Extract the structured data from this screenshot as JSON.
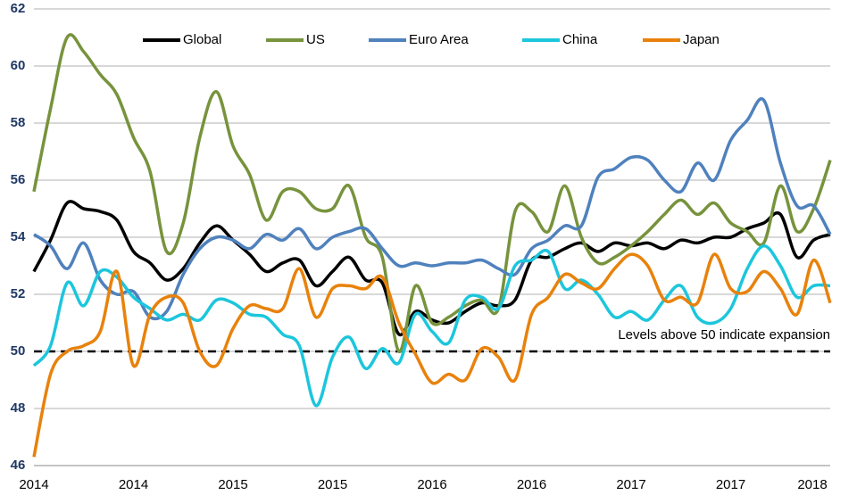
{
  "chart_data": {
    "type": "line",
    "categories": [
      "2014",
      null,
      null,
      null,
      null,
      null,
      "2014",
      null,
      null,
      null,
      null,
      null,
      "2015",
      null,
      null,
      null,
      null,
      null,
      "2015",
      null,
      null,
      null,
      null,
      null,
      "2016",
      null,
      null,
      null,
      null,
      null,
      "2016",
      null,
      null,
      null,
      null,
      null,
      "2017",
      null,
      null,
      null,
      null,
      null,
      "2017",
      null,
      null,
      null,
      null,
      null,
      "2018"
    ],
    "series": [
      {
        "name": "Global",
        "color": "#000000",
        "values": [
          52.8,
          53.9,
          55.2,
          55.0,
          54.9,
          54.6,
          53.5,
          53.1,
          52.5,
          52.9,
          53.8,
          54.4,
          53.9,
          53.4,
          52.8,
          53.1,
          53.2,
          52.3,
          52.8,
          53.3,
          52.5,
          52.4,
          50.6,
          51.4,
          51.1,
          51.0,
          51.4,
          51.7,
          51.6,
          51.8,
          53.2,
          53.3,
          53.6,
          53.8,
          53.5,
          53.8,
          53.7,
          53.8,
          53.6,
          53.9,
          53.8,
          54.0,
          54.0,
          54.3,
          54.5,
          54.8,
          53.3,
          53.9,
          54.1
        ]
      },
      {
        "name": "US",
        "color": "#77933c",
        "values": [
          55.6,
          58.5,
          61.0,
          60.5,
          59.7,
          59.0,
          57.5,
          56.3,
          53.5,
          54.5,
          57.5,
          59.1,
          57.2,
          56.2,
          54.6,
          55.6,
          55.6,
          55.0,
          55.0,
          55.8,
          54.0,
          53.3,
          50.0,
          52.3,
          51.0,
          51.2,
          51.6,
          51.8,
          51.5,
          54.9,
          54.9,
          54.2,
          55.8,
          54.0,
          53.1,
          53.3,
          53.7,
          54.2,
          54.8,
          55.3,
          54.8,
          55.2,
          54.5,
          54.2,
          53.8,
          55.8,
          54.2,
          55.0,
          56.7
        ]
      },
      {
        "name": "Euro Area",
        "color": "#4f81bd",
        "values": [
          54.1,
          53.7,
          52.9,
          53.8,
          52.5,
          52.0,
          52.1,
          51.2,
          51.4,
          52.7,
          53.6,
          54.0,
          53.9,
          53.6,
          54.1,
          53.9,
          54.3,
          53.6,
          54.0,
          54.2,
          54.3,
          53.6,
          53.0,
          53.1,
          53.0,
          53.1,
          53.1,
          53.2,
          52.9,
          52.7,
          53.6,
          53.9,
          54.4,
          54.4,
          56.1,
          56.4,
          56.8,
          56.7,
          56.0,
          55.6,
          56.6,
          56.0,
          57.4,
          58.1,
          58.8,
          56.6,
          55.1,
          55.1,
          54.1
        ]
      },
      {
        "name": "China",
        "color": "#1cc6dc",
        "values": [
          49.5,
          50.2,
          52.4,
          51.6,
          52.8,
          52.6,
          51.9,
          51.5,
          51.1,
          51.3,
          51.1,
          51.8,
          51.7,
          51.3,
          51.2,
          50.6,
          50.2,
          48.1,
          49.8,
          50.5,
          49.4,
          50.1,
          49.6,
          51.3,
          50.7,
          50.3,
          51.8,
          51.9,
          51.5,
          53.0,
          53.2,
          53.5,
          52.2,
          52.5,
          52.0,
          51.2,
          51.4,
          51.1,
          51.8,
          52.3,
          51.2,
          51.0,
          51.5,
          52.9,
          53.7,
          53.0,
          51.9,
          52.3,
          52.3
        ]
      },
      {
        "name": "Japan",
        "color": "#e8820c",
        "values": [
          46.3,
          49.2,
          50.0,
          50.2,
          50.7,
          52.8,
          49.5,
          51.3,
          51.9,
          51.7,
          50.0,
          49.5,
          50.8,
          51.6,
          51.5,
          51.5,
          52.9,
          51.2,
          52.2,
          52.3,
          52.2,
          52.6,
          51.0,
          49.9,
          48.9,
          49.2,
          49.0,
          50.1,
          49.8,
          49.0,
          51.3,
          51.9,
          52.7,
          52.4,
          52.2,
          52.9,
          53.4,
          53.0,
          51.8,
          51.9,
          51.7,
          53.4,
          52.2,
          52.1,
          52.8,
          52.2,
          51.3,
          53.2,
          51.7
        ]
      }
    ],
    "ylim": [
      46,
      62
    ],
    "yticks": [
      46,
      48,
      50,
      52,
      54,
      56,
      58,
      60,
      62
    ],
    "grid": true,
    "reference_line": {
      "value": 50,
      "label": "Levels above 50 indicate expansion"
    },
    "legend": "top"
  }
}
